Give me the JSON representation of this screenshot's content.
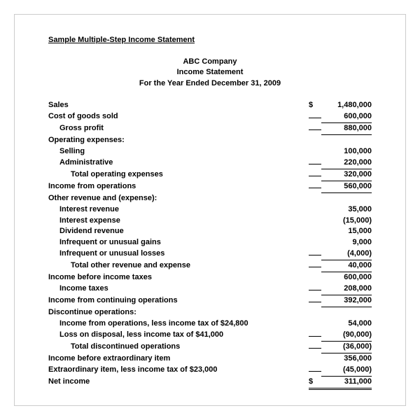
{
  "doc_title": "Sample Multiple-Step Income Statement",
  "company": "ABC Company",
  "statement_name": "Income Statement",
  "period": "For the Year Ended December 31, 2009",
  "currency_symbol": "$",
  "rows": [
    {
      "label": "Sales",
      "indent": 0,
      "bold": true,
      "currency": true,
      "amount": "1,480,000",
      "underline": null
    },
    {
      "label": "Cost of goods sold",
      "indent": 0,
      "bold": true,
      "amount": "600,000",
      "underline": "single"
    },
    {
      "label": "Gross profit",
      "indent": 1,
      "bold": true,
      "amount": "880,000",
      "underline": "single"
    },
    {
      "label": "Operating expenses:",
      "indent": 0,
      "bold": true,
      "amount": "",
      "underline": null
    },
    {
      "label": "Selling",
      "indent": 1,
      "bold": true,
      "amount": "100,000",
      "underline": null
    },
    {
      "label": "Administrative",
      "indent": 1,
      "bold": true,
      "amount": "220,000",
      "underline": "single"
    },
    {
      "label": "Total operating expenses",
      "indent": 2,
      "bold": true,
      "amount": "320,000",
      "underline": "single"
    },
    {
      "label": "Income from operations",
      "indent": 0,
      "bold": true,
      "amount": "560,000",
      "underline": "single"
    },
    {
      "label": "Other revenue and (expense):",
      "indent": 0,
      "bold": true,
      "amount": "",
      "underline": null
    },
    {
      "label": "Interest revenue",
      "indent": 1,
      "bold": true,
      "amount": "35,000",
      "underline": null
    },
    {
      "label": "Interest expense",
      "indent": 1,
      "bold": true,
      "amount": "(15,000)",
      "underline": null
    },
    {
      "label": "Dividend revenue",
      "indent": 1,
      "bold": true,
      "amount": "15,000",
      "underline": null
    },
    {
      "label": "Infrequent or unusual gains",
      "indent": 1,
      "bold": true,
      "amount": "9,000",
      "underline": null
    },
    {
      "label": "Infrequent or unusual losses",
      "indent": 1,
      "bold": true,
      "amount": "(4,000)",
      "underline": "single"
    },
    {
      "label": "Total other revenue and expense",
      "indent": 2,
      "bold": true,
      "amount": "40,000",
      "underline": "single"
    },
    {
      "label": "Income before income taxes",
      "indent": 0,
      "bold": true,
      "amount": "600,000",
      "underline": null
    },
    {
      "label": "Income taxes",
      "indent": 1,
      "bold": true,
      "amount": "208,000",
      "underline": "single"
    },
    {
      "label": "Income from continuing operations",
      "indent": 0,
      "bold": true,
      "amount": "392,000",
      "underline": "single"
    },
    {
      "label": "Discontinue operations:",
      "indent": 0,
      "bold": true,
      "amount": "",
      "underline": null
    },
    {
      "label": "Income from operations, less income tax of $24,800",
      "indent": 1,
      "bold": true,
      "amount": "54,000",
      "underline": null
    },
    {
      "label": "Loss on disposal, less income tax of $41,000",
      "indent": 1,
      "bold": true,
      "amount": "(90,000)",
      "underline": "single"
    },
    {
      "label": "Total discontinued operations",
      "indent": 2,
      "bold": true,
      "amount": "(36,000)",
      "underline": "single"
    },
    {
      "label": "Income before extraordinary item",
      "indent": 0,
      "bold": true,
      "amount": "356,000",
      "underline": null
    },
    {
      "label": "Extraordinary item, less income tax of $23,000",
      "indent": 0,
      "bold": true,
      "amount": "(45,000)",
      "underline": "single"
    },
    {
      "label": "Net income",
      "indent": 0,
      "bold": true,
      "currency": true,
      "amount": "311,000",
      "underline": "double"
    }
  ]
}
